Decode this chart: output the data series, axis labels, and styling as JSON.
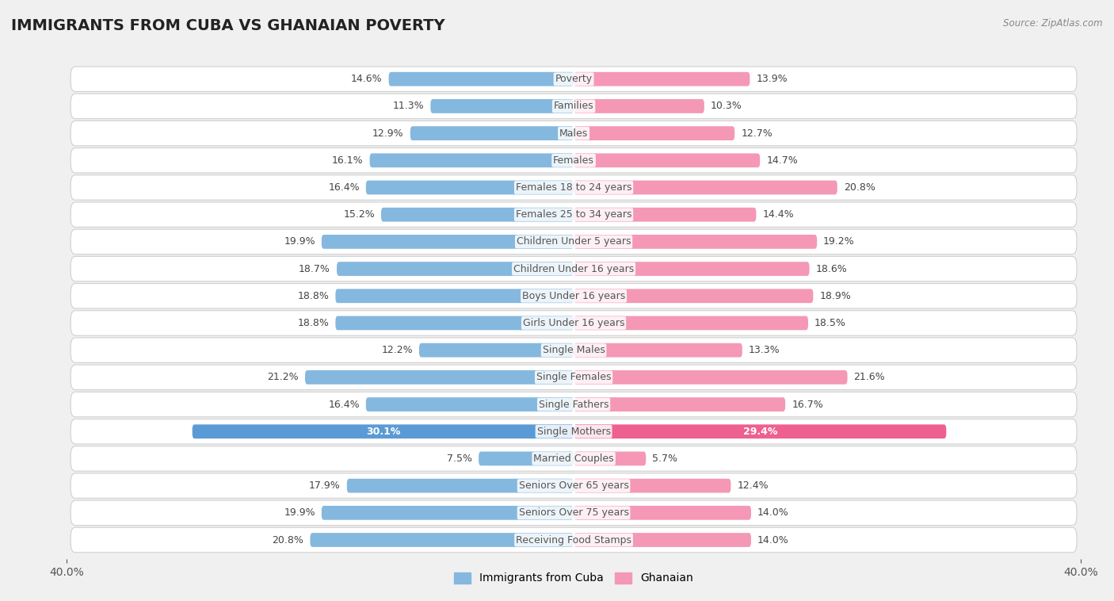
{
  "title": "IMMIGRANTS FROM CUBA VS GHANAIAN POVERTY",
  "source": "Source: ZipAtlas.com",
  "categories": [
    "Poverty",
    "Families",
    "Males",
    "Females",
    "Females 18 to 24 years",
    "Females 25 to 34 years",
    "Children Under 5 years",
    "Children Under 16 years",
    "Boys Under 16 years",
    "Girls Under 16 years",
    "Single Males",
    "Single Females",
    "Single Fathers",
    "Single Mothers",
    "Married Couples",
    "Seniors Over 65 years",
    "Seniors Over 75 years",
    "Receiving Food Stamps"
  ],
  "cuba_values": [
    14.6,
    11.3,
    12.9,
    16.1,
    16.4,
    15.2,
    19.9,
    18.7,
    18.8,
    18.8,
    12.2,
    21.2,
    16.4,
    30.1,
    7.5,
    17.9,
    19.9,
    20.8
  ],
  "ghana_values": [
    13.9,
    10.3,
    12.7,
    14.7,
    20.8,
    14.4,
    19.2,
    18.6,
    18.9,
    18.5,
    13.3,
    21.6,
    16.7,
    29.4,
    5.7,
    12.4,
    14.0,
    14.0
  ],
  "cuba_color": "#85b8de",
  "ghana_color": "#f498b6",
  "cuba_highlight_color": "#5b9bd5",
  "ghana_highlight_color": "#ee6090",
  "highlight_rows": [
    13
  ],
  "xlim": 40.0,
  "bar_height": 0.52,
  "bg_color": "#f0f0f0",
  "row_color": "#ffffff",
  "row_border_color": "#d0d0d0",
  "legend_cuba": "Immigrants from Cuba",
  "legend_ghana": "Ghanaian",
  "value_fontsize": 9.0,
  "label_fontsize": 9.0,
  "title_fontsize": 14,
  "highlight_text_color": "#ffffff",
  "normal_text_color": "#444444",
  "center_label_color": "#555555"
}
